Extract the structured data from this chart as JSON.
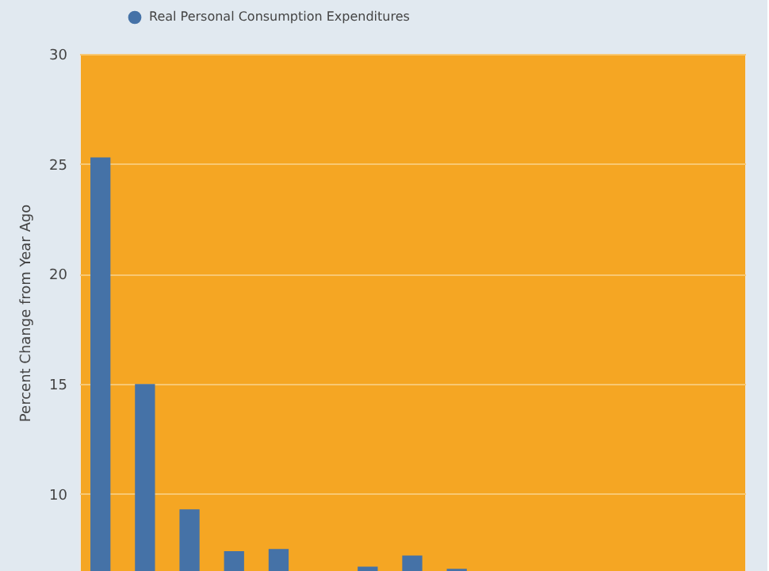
{
  "chart_data": {
    "type": "bar",
    "ylabel": "Percent Change from Year Ago",
    "categories": [
      null,
      null,
      null,
      null,
      null,
      null,
      null,
      null,
      null,
      null,
      null,
      null,
      null,
      null,
      null
    ],
    "series": [
      {
        "name": "Real Personal Consumption Expenditures",
        "color": "#4572a7",
        "values": [
          25.3,
          15.0,
          9.3,
          7.4,
          7.5,
          null,
          6.7,
          7.2,
          6.6,
          null,
          null,
          null,
          null,
          null,
          null
        ]
      }
    ],
    "ylim": [
      6.5,
      30
    ],
    "yticks": [
      10,
      15,
      20,
      25,
      30
    ],
    "grid": "y",
    "legend": "top left",
    "tick_labels": "y"
  }
}
